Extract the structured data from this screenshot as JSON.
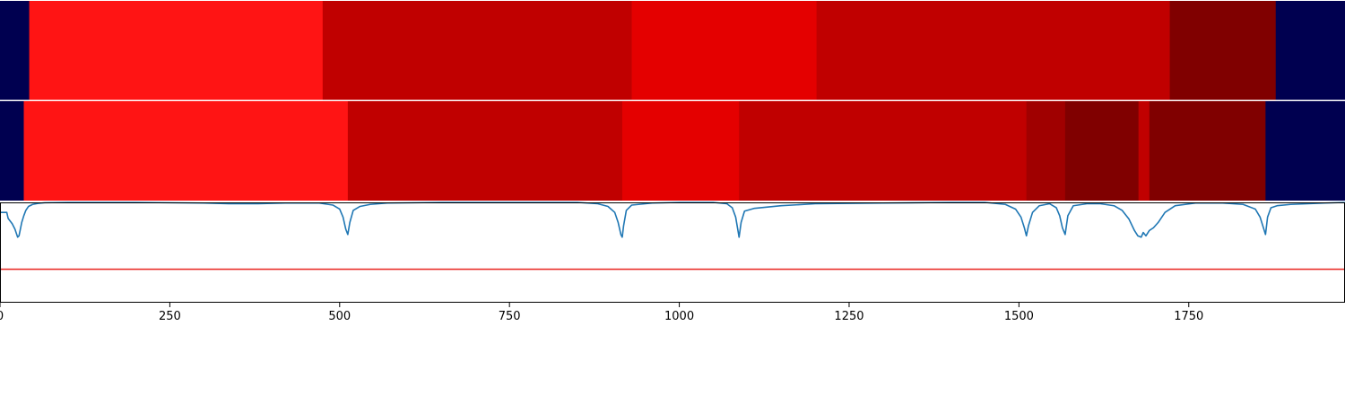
{
  "chart_data": {
    "type": "heatmap",
    "x_axis": {
      "range": [
        0,
        1980
      ],
      "ticks": [
        0,
        250,
        500,
        750,
        1000,
        1250,
        1500,
        1750
      ],
      "tick_labels": [
        "0",
        "250",
        "500",
        "750",
        "1000",
        "1250",
        "1500",
        "1750"
      ]
    },
    "tracks": [
      {
        "segments": [
          {
            "start": 0,
            "end": 43,
            "color": "#000050"
          },
          {
            "start": 43,
            "end": 475,
            "color": "#ff1414"
          },
          {
            "start": 475,
            "end": 930,
            "color": "#c00000"
          },
          {
            "start": 930,
            "end": 1202,
            "color": "#e40000"
          },
          {
            "start": 1202,
            "end": 1722,
            "color": "#c00000"
          },
          {
            "start": 1722,
            "end": 1878,
            "color": "#800000"
          },
          {
            "start": 1878,
            "end": 1980,
            "color": "#000050"
          }
        ]
      },
      {
        "segments": [
          {
            "start": 0,
            "end": 35,
            "color": "#000050"
          },
          {
            "start": 35,
            "end": 512,
            "color": "#ff1414"
          },
          {
            "start": 512,
            "end": 916,
            "color": "#c00000"
          },
          {
            "start": 916,
            "end": 1088,
            "color": "#e40000"
          },
          {
            "start": 1088,
            "end": 1511,
            "color": "#c00000"
          },
          {
            "start": 1511,
            "end": 1568,
            "color": "#a00000"
          },
          {
            "start": 1568,
            "end": 1676,
            "color": "#800000"
          },
          {
            "start": 1676,
            "end": 1692,
            "color": "#c00000"
          },
          {
            "start": 1692,
            "end": 1863,
            "color": "#800000"
          },
          {
            "start": 1863,
            "end": 1980,
            "color": "#000050"
          }
        ]
      }
    ],
    "line_panel": {
      "ylim": [
        -1.5,
        0
      ],
      "threshold": -1.0,
      "threshold_color": "#e8211c",
      "line_color": "#1f77b4",
      "series": {
        "x": [
          0,
          10,
          12,
          18,
          22,
          26,
          28,
          32,
          35,
          38,
          42,
          48,
          56,
          66,
          100,
          200,
          300,
          340,
          380,
          420,
          470,
          490,
          500,
          505,
          509,
          512,
          515,
          520,
          530,
          545,
          570,
          650,
          750,
          850,
          880,
          895,
          905,
          910,
          914,
          916,
          918,
          922,
          930,
          960,
          1000,
          1050,
          1070,
          1078,
          1083,
          1086,
          1088,
          1091,
          1096,
          1110,
          1150,
          1200,
          1300,
          1400,
          1450,
          1480,
          1495,
          1503,
          1508,
          1511,
          1514,
          1520,
          1530,
          1545,
          1555,
          1560,
          1564,
          1568,
          1572,
          1580,
          1600,
          1620,
          1640,
          1652,
          1662,
          1670,
          1675,
          1680,
          1683,
          1687,
          1692,
          1698,
          1705,
          1715,
          1730,
          1760,
          1800,
          1830,
          1848,
          1855,
          1859,
          1863,
          1866,
          1871,
          1880,
          1900,
          1950,
          1980
        ],
        "y": [
          -0.15,
          -0.15,
          -0.24,
          -0.32,
          -0.4,
          -0.52,
          -0.5,
          -0.3,
          -0.2,
          -0.12,
          -0.06,
          -0.03,
          -0.015,
          -0.005,
          0,
          0,
          -0.01,
          -0.02,
          -0.02,
          -0.01,
          -0.01,
          -0.04,
          -0.1,
          -0.22,
          -0.4,
          -0.48,
          -0.3,
          -0.12,
          -0.06,
          -0.03,
          -0.01,
          0,
          0,
          0,
          -0.02,
          -0.06,
          -0.15,
          -0.3,
          -0.48,
          -0.52,
          -0.35,
          -0.12,
          -0.04,
          -0.01,
          0,
          0,
          -0.02,
          -0.08,
          -0.22,
          -0.4,
          -0.52,
          -0.3,
          -0.13,
          -0.09,
          -0.05,
          -0.02,
          -0.01,
          0,
          0,
          -0.03,
          -0.1,
          -0.22,
          -0.38,
          -0.5,
          -0.35,
          -0.15,
          -0.05,
          -0.02,
          -0.08,
          -0.2,
          -0.38,
          -0.48,
          -0.2,
          -0.05,
          -0.02,
          -0.02,
          -0.05,
          -0.12,
          -0.25,
          -0.42,
          -0.5,
          -0.52,
          -0.45,
          -0.5,
          -0.42,
          -0.38,
          -0.3,
          -0.15,
          -0.05,
          -0.01,
          -0.01,
          -0.03,
          -0.1,
          -0.22,
          -0.35,
          -0.48,
          -0.22,
          -0.08,
          -0.05,
          -0.03,
          -0.01,
          0
        ]
      }
    }
  }
}
